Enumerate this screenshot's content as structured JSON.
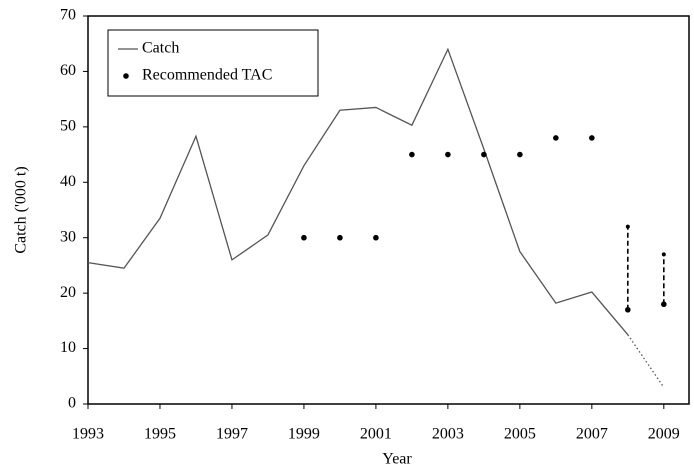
{
  "chart_data": {
    "type": "line",
    "x_label": "Year",
    "y_label": "Catch ('000 t)",
    "x": [
      1993,
      1994,
      1995,
      1996,
      1997,
      1998,
      1999,
      2000,
      2001,
      2002,
      2003,
      2004,
      2005,
      2006,
      2007,
      2008,
      2009
    ],
    "series": [
      {
        "name": "Catch",
        "color": "#555555",
        "style": "solid",
        "values": [
          25.5,
          24.5,
          33.5,
          48.3,
          26,
          30.5,
          43,
          53,
          53.5,
          50.3,
          64,
          46,
          27.5,
          18.2,
          20.2,
          12.5,
          null
        ]
      },
      {
        "color": "#555555",
        "style": "dotted",
        "values": [
          null,
          null,
          null,
          null,
          null,
          null,
          null,
          null,
          null,
          null,
          null,
          null,
          null,
          null,
          null,
          12.5,
          3
        ]
      }
    ],
    "tac": {
      "name": "Recommended TAC",
      "color": "#000000",
      "x": [
        1999,
        2000,
        2001,
        2002,
        2003,
        2004,
        2005,
        2006,
        2007
      ],
      "values": [
        30,
        30,
        30,
        45,
        45,
        45,
        45,
        48,
        48
      ],
      "ranges": [
        {
          "x": 2008,
          "low": 17,
          "high": 32
        },
        {
          "x": 2009,
          "low": 18,
          "high": 27
        }
      ]
    },
    "xlim": [
      1993,
      2009.7
    ],
    "ylim": [
      0,
      70
    ],
    "xticks": [
      1993,
      1995,
      1997,
      1999,
      2001,
      2003,
      2005,
      2007,
      2009
    ],
    "yticks": [
      0,
      10,
      20,
      30,
      40,
      50,
      60,
      70
    ],
    "grid": false,
    "legend": "top-left"
  }
}
